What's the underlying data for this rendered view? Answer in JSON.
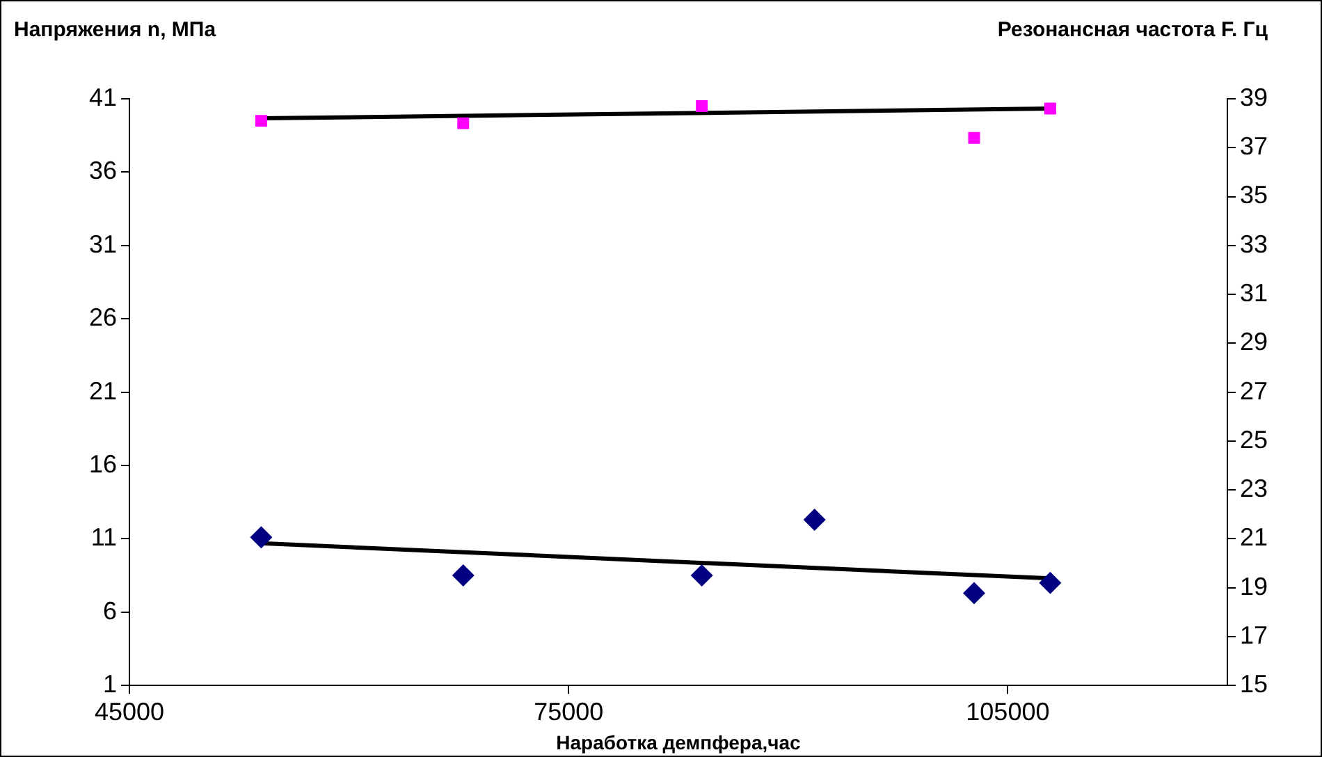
{
  "chart_data": {
    "type": "scatter",
    "xlabel": "Наработка демпфера,час",
    "ylabel": "Напряжения n, МПа",
    "y2label": "Резонансная частота F. Гц",
    "xlim": [
      45000,
      120000
    ],
    "xticks": [
      45000,
      75000,
      105000
    ],
    "ylim": [
      1,
      41
    ],
    "yticks": [
      1,
      6,
      11,
      16,
      21,
      26,
      31,
      36,
      41
    ],
    "y2lim": [
      15,
      39
    ],
    "y2ticks": [
      15,
      17,
      19,
      21,
      23,
      25,
      27,
      29,
      31,
      33,
      35,
      37,
      39
    ],
    "grid": false,
    "legend": false,
    "series": [
      {
        "axis": "y2",
        "color": "#ff00ff",
        "marker": "square",
        "x": [
          54000,
          67800,
          84100,
          102700,
          107900
        ],
        "values": [
          38.1,
          38.0,
          38.7,
          37.4,
          38.6
        ]
      },
      {
        "axis": "y",
        "color": "#000080",
        "marker": "diamond",
        "x": [
          54000,
          67800,
          84100,
          91800,
          102700,
          107900
        ],
        "values": [
          11.1,
          8.5,
          8.5,
          12.3,
          7.3,
          8.0
        ]
      },
      {
        "type": "line",
        "axis": "y2",
        "color": "#000000",
        "marker": "none",
        "x": [
          54000,
          107900
        ],
        "values": [
          38.2,
          38.6
        ]
      },
      {
        "type": "line",
        "axis": "y",
        "color": "#000000",
        "marker": "none",
        "x": [
          54000,
          107900
        ],
        "values": [
          10.7,
          8.3
        ]
      }
    ]
  }
}
